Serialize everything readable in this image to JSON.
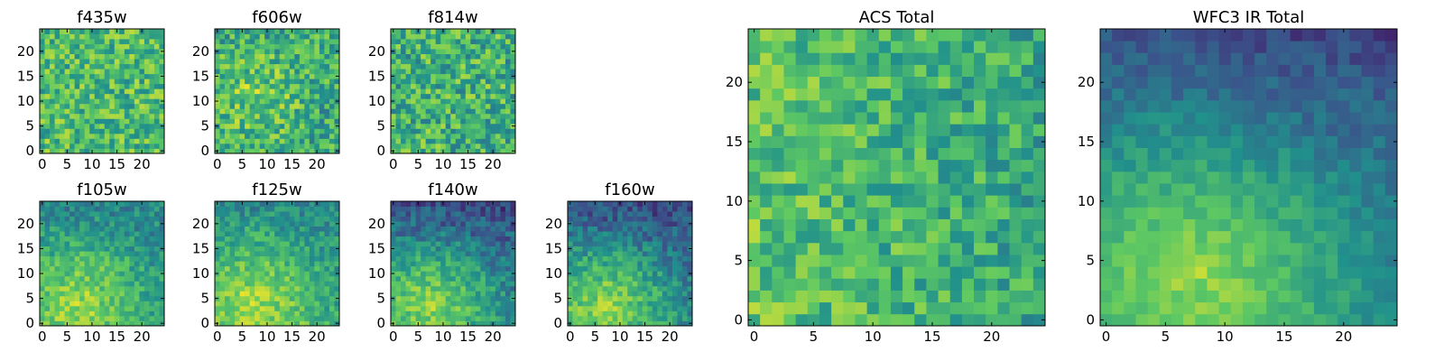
{
  "figure": {
    "colormap": "viridis",
    "colors": [
      "#440154",
      "#3b528b",
      "#21918c",
      "#5ec962",
      "#fde725"
    ]
  },
  "chart_data": [
    {
      "type": "heatmap",
      "title": "f435w",
      "grid_size": 25,
      "xlim": [
        0,
        24
      ],
      "ylim": [
        0,
        24
      ],
      "xticks": [
        "0",
        "5",
        "10",
        "15",
        "20"
      ],
      "yticks": [
        "0",
        "5",
        "10",
        "15",
        "20"
      ],
      "pattern": "uniform-noise",
      "mean_level": 0.68,
      "noise": 0.22
    },
    {
      "type": "heatmap",
      "title": "f606w",
      "grid_size": 25,
      "xlim": [
        0,
        24
      ],
      "ylim": [
        0,
        24
      ],
      "xticks": [
        "0",
        "5",
        "10",
        "15",
        "20"
      ],
      "yticks": [
        "0",
        "5",
        "10",
        "15",
        "20"
      ],
      "pattern": "central-blob",
      "mean_level": 0.62,
      "noise": 0.22
    },
    {
      "type": "heatmap",
      "title": "f814w",
      "grid_size": 25,
      "xlim": [
        0,
        24
      ],
      "ylim": [
        0,
        24
      ],
      "xticks": [
        "0",
        "5",
        "10",
        "15",
        "20"
      ],
      "yticks": [
        "0",
        "5",
        "10",
        "15",
        "20"
      ],
      "pattern": "uniform-noise",
      "mean_level": 0.64,
      "noise": 0.24
    },
    {
      "type": "heatmap",
      "title": "f105w",
      "grid_size": 25,
      "xlim": [
        0,
        24
      ],
      "ylim": [
        0,
        24
      ],
      "xticks": [
        "0",
        "5",
        "10",
        "15",
        "20"
      ],
      "yticks": [
        "0",
        "5",
        "10",
        "15",
        "20"
      ],
      "pattern": "bright-bottom-left",
      "mean_level": 0.58,
      "noise": 0.14
    },
    {
      "type": "heatmap",
      "title": "f125w",
      "grid_size": 25,
      "xlim": [
        0,
        24
      ],
      "ylim": [
        0,
        24
      ],
      "xticks": [
        "0",
        "5",
        "10",
        "15",
        "20"
      ],
      "yticks": [
        "0",
        "5",
        "10",
        "15",
        "20"
      ],
      "pattern": "bright-bottom-left",
      "mean_level": 0.6,
      "noise": 0.14
    },
    {
      "type": "heatmap",
      "title": "f140w",
      "grid_size": 25,
      "xlim": [
        0,
        24
      ],
      "ylim": [
        0,
        24
      ],
      "xticks": [
        "0",
        "5",
        "10",
        "15",
        "20"
      ],
      "yticks": [
        "0",
        "5",
        "10",
        "15",
        "20"
      ],
      "pattern": "bright-bottom-dark-top",
      "mean_level": 0.55,
      "noise": 0.14
    },
    {
      "type": "heatmap",
      "title": "f160w",
      "grid_size": 25,
      "xlim": [
        0,
        24
      ],
      "ylim": [
        0,
        24
      ],
      "xticks": [
        "0",
        "5",
        "10",
        "15",
        "20"
      ],
      "yticks": [
        "0",
        "5",
        "10",
        "15",
        "20"
      ],
      "pattern": "bright-bottom-dark-top",
      "mean_level": 0.55,
      "noise": 0.14
    },
    {
      "type": "heatmap",
      "title": "ACS Total",
      "grid_size": 25,
      "xlim": [
        0,
        24
      ],
      "ylim": [
        0,
        24
      ],
      "xticks": [
        "0",
        "5",
        "10",
        "15",
        "20"
      ],
      "yticks": [
        "0",
        "5",
        "10",
        "15",
        "20"
      ],
      "pattern": "noise-bright-left",
      "mean_level": 0.6,
      "noise": 0.18
    },
    {
      "type": "heatmap",
      "title": "WFC3 IR Total",
      "grid_size": 25,
      "xlim": [
        0,
        24
      ],
      "ylim": [
        0,
        24
      ],
      "xticks": [
        "0",
        "5",
        "10",
        "15",
        "20"
      ],
      "yticks": [
        "0",
        "5",
        "10",
        "15",
        "20"
      ],
      "pattern": "bright-bottom-dark-top",
      "mean_level": 0.55,
      "noise": 0.08
    }
  ]
}
